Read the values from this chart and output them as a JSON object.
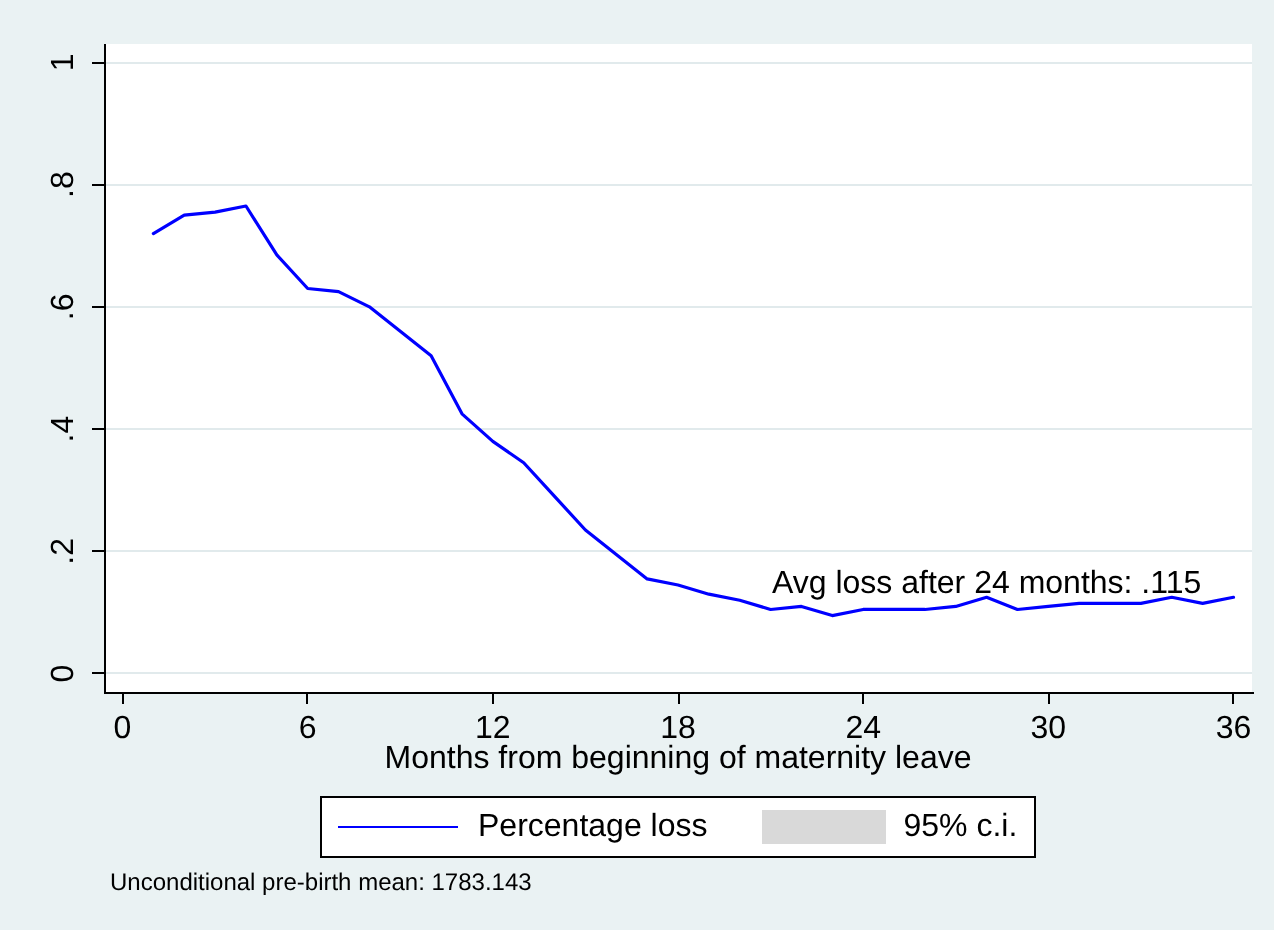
{
  "chart_data": {
    "type": "line",
    "xlabel": "Months from beginning of maternity leave",
    "x": [
      1,
      2,
      3,
      4,
      5,
      6,
      7,
      8,
      9,
      10,
      11,
      12,
      13,
      14,
      15,
      16,
      17,
      18,
      19,
      20,
      21,
      22,
      23,
      24,
      25,
      26,
      27,
      28,
      29,
      30,
      31,
      32,
      33,
      34,
      35,
      36
    ],
    "series": [
      {
        "name": "Percentage loss",
        "color": "#0000ff",
        "values": [
          0.72,
          0.75,
          0.755,
          0.765,
          0.685,
          0.63,
          0.625,
          0.6,
          0.56,
          0.52,
          0.425,
          0.38,
          0.345,
          0.29,
          0.235,
          0.195,
          0.155,
          0.145,
          0.13,
          0.12,
          0.105,
          0.11,
          0.095,
          0.105,
          0.105,
          0.105,
          0.11,
          0.125,
          0.105,
          0.11,
          0.115,
          0.115,
          0.115,
          0.125,
          0.115,
          0.125
        ]
      },
      {
        "name": "95% c.i.",
        "type": "area",
        "color": "#d9d9d9",
        "values": [
          null,
          null,
          null,
          null,
          null,
          null,
          null,
          null,
          null,
          null,
          null,
          null,
          null,
          null,
          null,
          null,
          null,
          null,
          null,
          null,
          null,
          null,
          null,
          null,
          null,
          null,
          null,
          null,
          null,
          null,
          null,
          null,
          null,
          null,
          null,
          null
        ]
      }
    ],
    "xlim": [
      -0.6,
      36.6
    ],
    "xticks": [
      0,
      6,
      12,
      18,
      24,
      30,
      36
    ],
    "ylim": [
      -0.03,
      1.03
    ],
    "yticks": [
      0,
      {
        "value": 0.2,
        "label": ".2"
      },
      {
        "value": 0.4,
        "label": ".4"
      },
      {
        "value": 0.6,
        "label": ".6"
      },
      {
        "value": 0.8,
        "label": ".8"
      },
      1
    ],
    "grid": "y",
    "legend": "bottom",
    "annotations": [
      {
        "text": "Avg loss after 24 months: .115",
        "x": 28,
        "y": 0.115
      },
      "Unconditional pre-birth mean: 1783.143"
    ]
  }
}
